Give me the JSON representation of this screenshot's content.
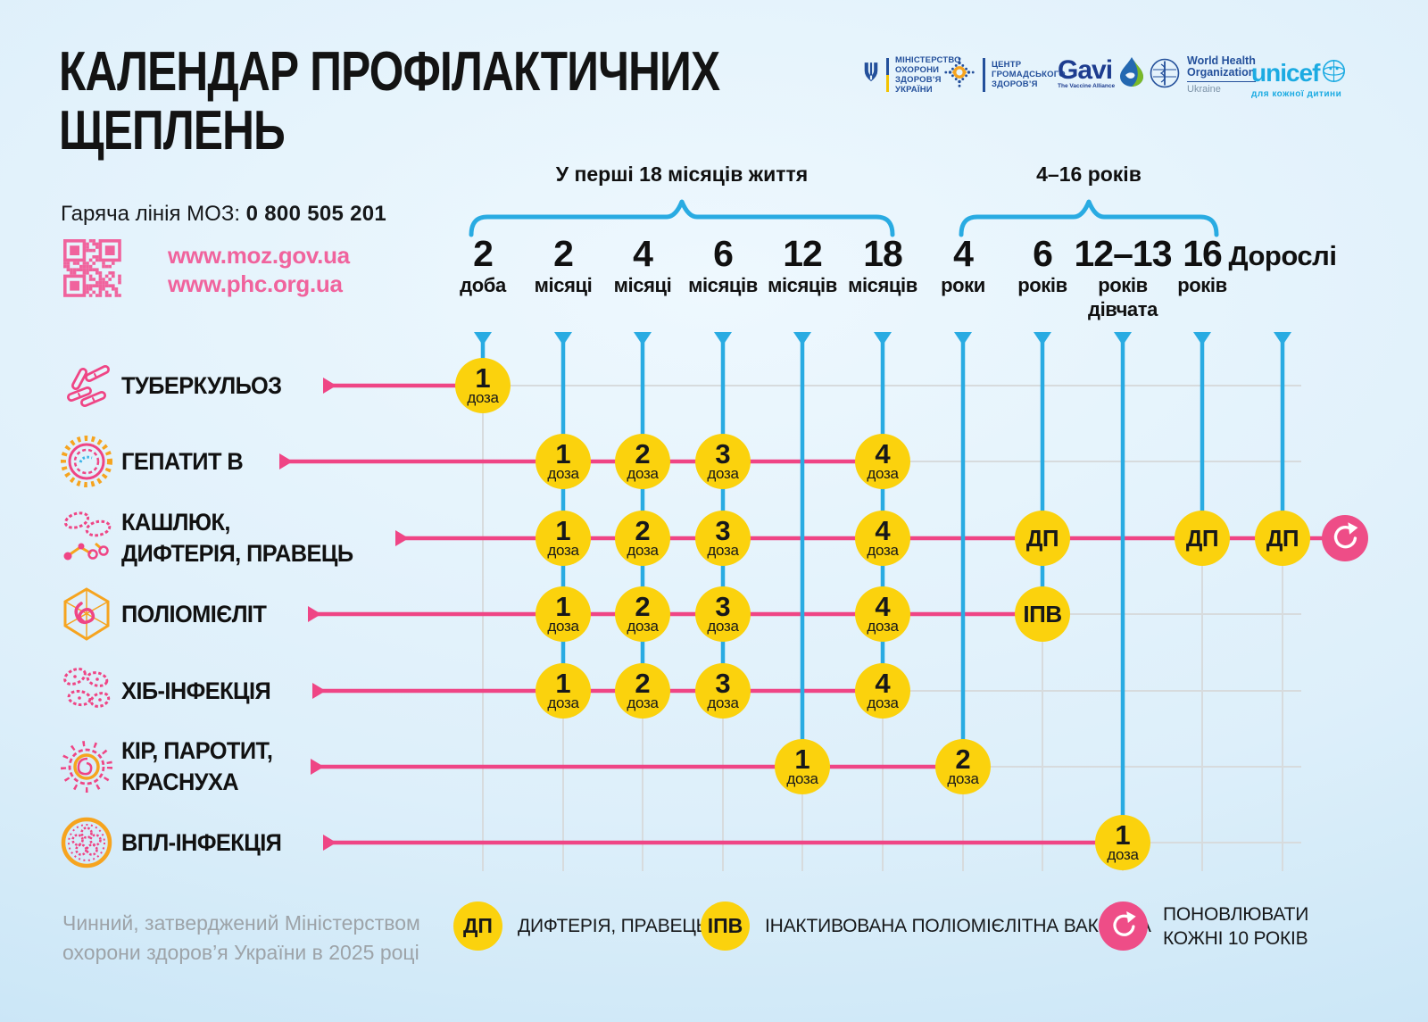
{
  "title_lines": [
    "КАЛЕНДАР ПРОФІЛАКТИЧНИХ",
    "ЩЕПЛЕНЬ"
  ],
  "hotline": {
    "label": "Гаряча лінія МОЗ:",
    "number": "0 800 505 201"
  },
  "websites": [
    "www.moz.gov.ua",
    "www.phc.org.ua"
  ],
  "logos": {
    "moh": {
      "lines": [
        "МІНІСТЕРСТВО",
        "ОХОРОНИ",
        "ЗДОРОВ’Я",
        "УКРАЇНИ"
      ]
    },
    "phc": {
      "lines": [
        "ЦЕНТР",
        "ГРОМАДСЬКОГО",
        "ЗДОРОВ’Я"
      ]
    },
    "gavi": {
      "wordmark": "Gavi",
      "tagline": "The Vaccine Alliance"
    },
    "who": {
      "lines": [
        "World Health",
        "Organization"
      ],
      "country": "Ukraine"
    },
    "unicef": {
      "wordmark": "unicef",
      "tagline": "для кожної дитини"
    }
  },
  "brackets": [
    {
      "label": "У перші 18 місяців життя"
    },
    {
      "label": "4–16 років"
    }
  ],
  "columns": [
    {
      "age": "2",
      "unit": "доба"
    },
    {
      "age": "2",
      "unit": "місяці"
    },
    {
      "age": "4",
      "unit": "місяці"
    },
    {
      "age": "6",
      "unit": "місяців"
    },
    {
      "age": "12",
      "unit": "місяців"
    },
    {
      "age": "18",
      "unit": "місяців"
    },
    {
      "age": "4",
      "unit": "роки"
    },
    {
      "age": "6",
      "unit": "років"
    },
    {
      "age": "12–13",
      "unit": "років",
      "unit2": "дівчата"
    },
    {
      "age": "16",
      "unit": "років"
    },
    {
      "age": "Дорослі",
      "unit": "",
      "adult": true
    }
  ],
  "dose_word": "доза",
  "schedule": [
    {
      "disease_lines": [
        "ТУБЕРКУЛЬОЗ"
      ],
      "icon": "tuberculosis-bacteria-icon",
      "doses": [
        {
          "col": 0,
          "num": "1"
        }
      ]
    },
    {
      "disease_lines": [
        "ГЕПАТИТ В"
      ],
      "icon": "hepatitis-virus-icon",
      "doses": [
        {
          "col": 1,
          "num": "1"
        },
        {
          "col": 2,
          "num": "2"
        },
        {
          "col": 3,
          "num": "3"
        },
        {
          "col": 5,
          "num": "4"
        }
      ]
    },
    {
      "disease_lines": [
        "КАШЛЮК,",
        "ДИФТЕРІЯ, ПРАВЕЦЬ"
      ],
      "icon": "dtp-bacteria-icon",
      "doses": [
        {
          "col": 1,
          "num": "1"
        },
        {
          "col": 2,
          "num": "2"
        },
        {
          "col": 3,
          "num": "3"
        },
        {
          "col": 5,
          "num": "4"
        },
        {
          "col": 7,
          "abbr": "ДП"
        },
        {
          "col": 9,
          "abbr": "ДП"
        },
        {
          "col": 10,
          "abbr": "ДП"
        }
      ],
      "repeat": true
    },
    {
      "disease_lines": [
        "ПОЛІОМІЄЛІТ"
      ],
      "icon": "polio-virus-icon",
      "doses": [
        {
          "col": 1,
          "num": "1"
        },
        {
          "col": 2,
          "num": "2"
        },
        {
          "col": 3,
          "num": "3"
        },
        {
          "col": 5,
          "num": "4"
        },
        {
          "col": 7,
          "abbr": "ІПВ"
        }
      ]
    },
    {
      "disease_lines": [
        "ХІБ-ІНФЕКЦІЯ"
      ],
      "icon": "hib-bacteria-icon",
      "doses": [
        {
          "col": 1,
          "num": "1"
        },
        {
          "col": 2,
          "num": "2"
        },
        {
          "col": 3,
          "num": "3"
        },
        {
          "col": 5,
          "num": "4"
        }
      ]
    },
    {
      "disease_lines": [
        "КІР, ПАРОТИТ,",
        "КРАСНУХА"
      ],
      "icon": "mmr-virus-icon",
      "doses": [
        {
          "col": 4,
          "num": "1"
        },
        {
          "col": 6,
          "num": "2"
        }
      ]
    },
    {
      "disease_lines": [
        "ВПЛ-ІНФЕКЦІЯ"
      ],
      "icon": "hpv-virus-icon",
      "doses": [
        {
          "col": 8,
          "num": "1"
        }
      ]
    }
  ],
  "legend": [
    {
      "badge": "ДП",
      "label": "ДИФТЕРІЯ, ПРАВЕЦЬ"
    },
    {
      "badge": "ІПВ",
      "label": "ІНАКТИВОВАНА ПОЛІОМІЄЛІТНА ВАКЦИНА"
    },
    {
      "badge": "repeat-icon",
      "label": "ПОНОВЛЮВАТИ КОЖНІ 10 РОКІВ"
    }
  ],
  "footer_lines": [
    "Чинний, затверджений Міністерством",
    "охорони здоров’я України в 2025 році"
  ],
  "colors": {
    "pink": "#ef4585",
    "pink_soft": "#ee4d87",
    "pink_light": "#f0639d",
    "yellow": "#fbd20d",
    "blue": "#29abe2",
    "grid_gray": "#d7dbdd",
    "navy": "#24509b",
    "gavi_blue": "#1d3c8f",
    "unicef_cyan": "#1cabe2",
    "orange": "#f6a41f",
    "footer_gray": "#9da3a8",
    "text_dark": "#131313"
  }
}
